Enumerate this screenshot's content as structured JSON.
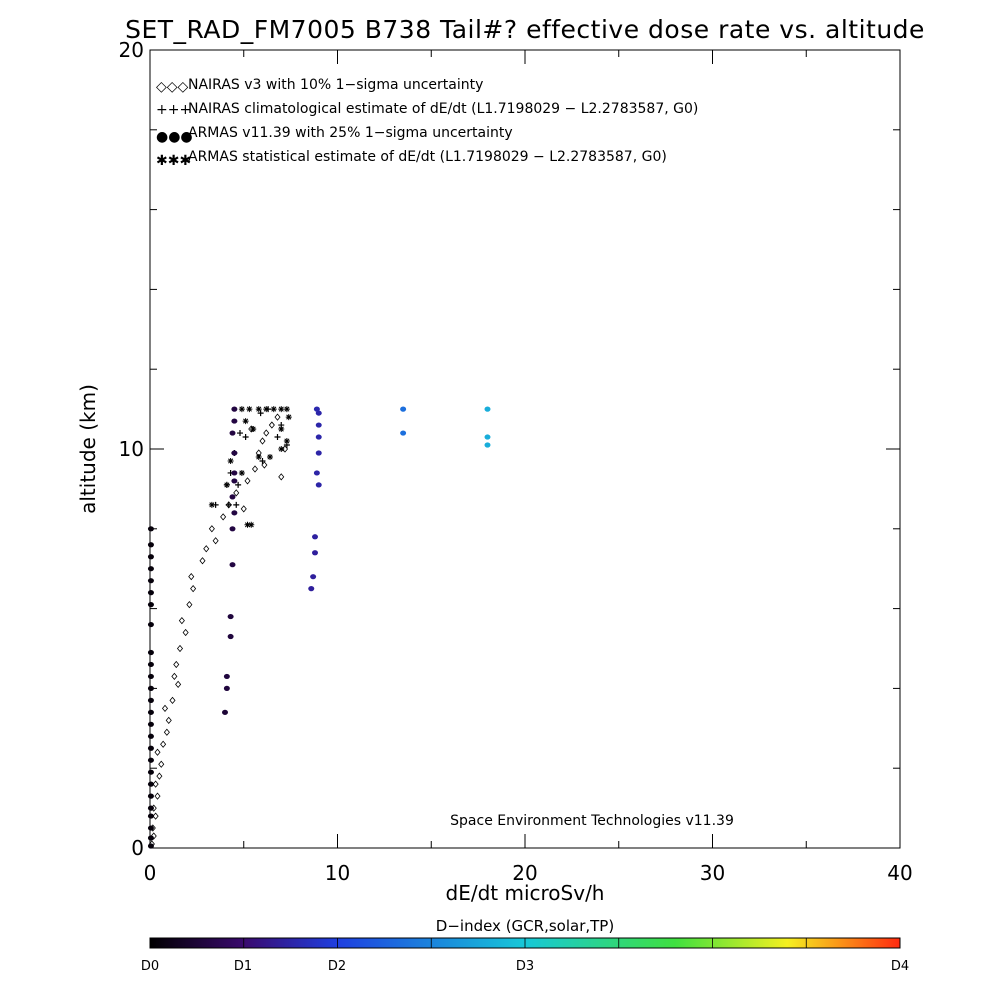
{
  "chart_data": {
    "type": "scatter",
    "title": "SET_RAD_FM7005  B738 Tail#? effective dose rate vs. altitude",
    "xlabel": "dE/dt microSv/h",
    "ylabel": "altitude (km)",
    "xlim": [
      0,
      40
    ],
    "ylim": [
      0,
      20
    ],
    "x_ticks": [
      0,
      10,
      20,
      30,
      40
    ],
    "x_tick_labels": [
      "0",
      "10",
      "20",
      "30",
      "40"
    ],
    "y_ticks": [
      0,
      10,
      20
    ],
    "y_tick_labels": [
      "0",
      "10",
      "20"
    ],
    "legend_position": "top-left",
    "legend": [
      {
        "symbol": "◇◇◇",
        "label": "NAIRAS v3 with 10% 1−sigma uncertainty"
      },
      {
        "symbol": "+++",
        "label": "NAIRAS climatological estimate of dE/dt (L1.7198029 − L2.2783587, G0)"
      },
      {
        "symbol": "●●●",
        "label": "ARMAS v11.39 with 25% 1−sigma uncertainty",
        "color": "#1f3fe0"
      },
      {
        "symbol": "✱✱✱",
        "label": "ARMAS statistical estimate of dE/dt (L1.7198029 − L2.2783587, G0)"
      }
    ],
    "credit": "Space Environment Technologies v11.39",
    "series": [
      {
        "name": "NAIRAS v3 with 10% 1−sigma uncertainty",
        "marker": "diamond",
        "points": [
          [
            0.1,
            0.1
          ],
          [
            0.2,
            0.3
          ],
          [
            0.15,
            0.5
          ],
          [
            0.3,
            0.8
          ],
          [
            0.2,
            1.0
          ],
          [
            0.4,
            1.3
          ],
          [
            0.3,
            1.6
          ],
          [
            0.5,
            1.8
          ],
          [
            0.6,
            2.1
          ],
          [
            0.4,
            2.4
          ],
          [
            0.7,
            2.6
          ],
          [
            0.9,
            2.9
          ],
          [
            1.0,
            3.2
          ],
          [
            0.8,
            3.5
          ],
          [
            1.2,
            3.7
          ],
          [
            1.5,
            4.1
          ],
          [
            1.3,
            4.3
          ],
          [
            1.4,
            4.6
          ],
          [
            1.6,
            5.0
          ],
          [
            1.9,
            5.4
          ],
          [
            1.7,
            5.7
          ],
          [
            2.1,
            6.1
          ],
          [
            2.3,
            6.5
          ],
          [
            2.2,
            6.8
          ],
          [
            2.8,
            7.2
          ],
          [
            3.0,
            7.5
          ],
          [
            3.5,
            7.7
          ],
          [
            3.3,
            8.0
          ],
          [
            3.9,
            8.3
          ],
          [
            4.2,
            8.6
          ],
          [
            4.6,
            8.9
          ],
          [
            5.0,
            8.5
          ],
          [
            5.2,
            9.2
          ],
          [
            5.6,
            9.5
          ],
          [
            5.8,
            9.9
          ],
          [
            6.0,
            10.2
          ],
          [
            6.2,
            10.4
          ],
          [
            6.5,
            10.6
          ],
          [
            6.8,
            10.8
          ],
          [
            7.0,
            9.3
          ],
          [
            7.2,
            10.0
          ],
          [
            5.4,
            10.5
          ],
          [
            6.1,
            9.6
          ]
        ]
      },
      {
        "name": "NAIRAS climatological estimate of dE/dt (L1.7198029 − L2.2783587, G0)",
        "marker": "plus",
        "points": [
          [
            3.5,
            8.6
          ],
          [
            4.2,
            8.6
          ],
          [
            4.6,
            8.6
          ],
          [
            4.1,
            9.1
          ],
          [
            4.7,
            9.1
          ],
          [
            4.3,
            9.4
          ],
          [
            4.5,
            9.9
          ],
          [
            4.8,
            10.4
          ],
          [
            5.1,
            10.3
          ],
          [
            5.5,
            10.5
          ],
          [
            5.9,
            10.9
          ],
          [
            6.3,
            11.0
          ],
          [
            6.8,
            10.3
          ],
          [
            7.0,
            10.6
          ],
          [
            7.3,
            10.1
          ],
          [
            6.0,
            9.7
          ]
        ]
      },
      {
        "name": "ARMAS v11.39 with 25% 1−sigma uncertainty",
        "marker": "dot",
        "d_index": true,
        "points": [
          [
            0.05,
            0.05,
            0.05
          ],
          [
            0.05,
            0.25,
            0.05
          ],
          [
            0.05,
            0.5,
            0.05
          ],
          [
            0.05,
            0.8,
            0.05
          ],
          [
            0.05,
            1.0,
            0.05
          ],
          [
            0.05,
            1.3,
            0.05
          ],
          [
            0.05,
            1.6,
            0.05
          ],
          [
            0.05,
            1.9,
            0.05
          ],
          [
            0.05,
            2.2,
            0.05
          ],
          [
            0.05,
            2.5,
            0.05
          ],
          [
            0.05,
            2.8,
            0.05
          ],
          [
            0.05,
            3.1,
            0.05
          ],
          [
            0.05,
            3.4,
            0.05
          ],
          [
            0.05,
            3.7,
            0.05
          ],
          [
            0.05,
            4.0,
            0.05
          ],
          [
            0.05,
            4.3,
            0.05
          ],
          [
            0.05,
            4.6,
            0.05
          ],
          [
            0.05,
            4.9,
            0.05
          ],
          [
            0.05,
            5.6,
            0.05
          ],
          [
            0.05,
            6.1,
            0.05
          ],
          [
            0.05,
            6.4,
            0.05
          ],
          [
            0.05,
            6.7,
            0.05
          ],
          [
            0.05,
            7.0,
            0.05
          ],
          [
            0.05,
            7.3,
            0.05
          ],
          [
            0.05,
            7.6,
            0.05
          ],
          [
            0.05,
            8.0,
            0.05
          ],
          [
            4.0,
            3.4,
            0.25
          ],
          [
            4.1,
            4.0,
            0.28
          ],
          [
            4.1,
            4.3,
            0.28
          ],
          [
            4.3,
            5.3,
            0.28
          ],
          [
            4.3,
            5.8,
            0.28
          ],
          [
            4.4,
            7.1,
            0.3
          ],
          [
            4.4,
            8.0,
            0.3
          ],
          [
            4.5,
            8.4,
            0.3
          ],
          [
            4.4,
            8.8,
            0.3
          ],
          [
            4.5,
            9.2,
            0.3
          ],
          [
            4.5,
            9.4,
            0.3
          ],
          [
            4.5,
            9.9,
            0.3
          ],
          [
            4.4,
            10.4,
            0.3
          ],
          [
            4.5,
            10.7,
            0.3
          ],
          [
            4.5,
            11.0,
            0.3
          ],
          [
            8.6,
            6.5,
            0.7
          ],
          [
            8.7,
            6.8,
            0.7
          ],
          [
            8.8,
            7.4,
            0.7
          ],
          [
            8.8,
            7.8,
            0.72
          ],
          [
            9.0,
            9.1,
            0.75
          ],
          [
            8.9,
            9.4,
            0.75
          ],
          [
            9.0,
            9.9,
            0.75
          ],
          [
            9.0,
            10.3,
            0.76
          ],
          [
            9.0,
            10.6,
            0.76
          ],
          [
            9.0,
            10.9,
            0.76
          ],
          [
            8.9,
            11.0,
            0.78
          ],
          [
            13.5,
            10.4,
            1.35
          ],
          [
            13.5,
            11.0,
            1.35
          ],
          [
            18.0,
            10.1,
            1.8
          ],
          [
            18.0,
            10.3,
            1.8
          ],
          [
            18.0,
            11.0,
            1.8
          ]
        ]
      },
      {
        "name": "ARMAS statistical estimate of dE/dt (L1.7198029 − L2.2783587, G0)",
        "marker": "asterisk",
        "points": [
          [
            3.3,
            8.6
          ],
          [
            5.2,
            8.1
          ],
          [
            5.4,
            8.1
          ],
          [
            4.1,
            9.1
          ],
          [
            4.3,
            9.7
          ],
          [
            5.8,
            9.8
          ],
          [
            6.4,
            9.8
          ],
          [
            5.5,
            10.5
          ],
          [
            5.1,
            10.7
          ],
          [
            4.9,
            11.0
          ],
          [
            5.3,
            11.0
          ],
          [
            5.8,
            11.0
          ],
          [
            6.2,
            11.0
          ],
          [
            6.6,
            11.0
          ],
          [
            7.0,
            11.0
          ],
          [
            7.3,
            11.0
          ],
          [
            7.0,
            10.5
          ],
          [
            7.3,
            10.2
          ],
          [
            7.0,
            10.0
          ],
          [
            4.9,
            9.4
          ],
          [
            7.4,
            10.8
          ]
        ]
      }
    ]
  },
  "colorbar": {
    "title": "D−index (GCR,solar,TP)",
    "labels": [
      "D0",
      "D1",
      "D2",
      "D3",
      "D4"
    ],
    "label_values": [
      0,
      0.5,
      1.0,
      2.0,
      4.0
    ],
    "colors": [
      "#000000",
      "#3a0a6e",
      "#1f3fe0",
      "#17c8d8",
      "#3fe040",
      "#f5f020",
      "#ff2a10"
    ]
  }
}
